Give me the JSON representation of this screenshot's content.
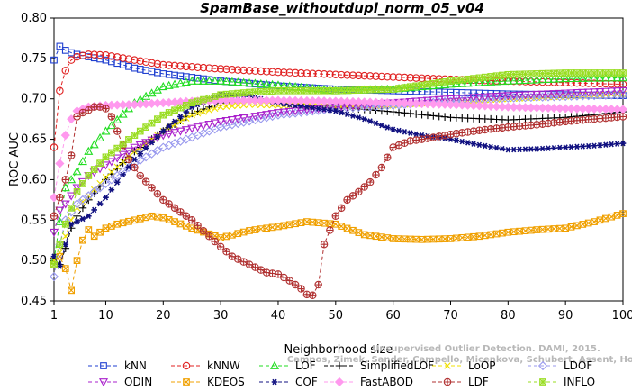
{
  "chart_data": {
    "type": "line",
    "title": "SpamBase_withoutdupl_norm_05_v04",
    "xlabel": "Neighborhood size",
    "ylabel": "ROC AUC",
    "xlim": [
      1,
      100
    ],
    "ylim": [
      0.45,
      0.8
    ],
    "xticks": [
      1,
      10,
      20,
      30,
      40,
      50,
      60,
      70,
      80,
      90,
      100
    ],
    "yticks": [
      0.45,
      0.5,
      0.55,
      0.6,
      0.65,
      0.7,
      0.75,
      0.8
    ],
    "ytick_labels": [
      "0.45",
      "0.50",
      "0.55",
      "0.60",
      "0.65",
      "0.70",
      "0.75",
      "0.80"
    ],
    "grid": false,
    "legend_position": "bottom",
    "watermark": [
      "Campos, Zimek, Sander, Campello, Micenkova, Schubert, Assent, Houle",
      "Unsupervised Outlier Detection. DAMI, 2015."
    ],
    "series": [
      {
        "name": "kNN",
        "color": "#1f3fd0",
        "marker": "square",
        "dash": "dash",
        "x": [
          1,
          2,
          3,
          4,
          5,
          7,
          10,
          15,
          20,
          30,
          40,
          50,
          60,
          70,
          80,
          90,
          100
        ],
        "y": [
          0.748,
          0.765,
          0.76,
          0.757,
          0.755,
          0.752,
          0.748,
          0.738,
          0.731,
          0.722,
          0.716,
          0.712,
          0.71,
          0.708,
          0.706,
          0.705,
          0.704
        ]
      },
      {
        "name": "kNNW",
        "color": "#e02020",
        "marker": "circle",
        "dash": "dash",
        "x": [
          1,
          2,
          3,
          4,
          5,
          7,
          10,
          15,
          20,
          30,
          40,
          50,
          60,
          70,
          80,
          90,
          100
        ],
        "y": [
          0.64,
          0.71,
          0.735,
          0.748,
          0.752,
          0.755,
          0.754,
          0.748,
          0.742,
          0.737,
          0.733,
          0.73,
          0.727,
          0.724,
          0.722,
          0.72,
          0.718
        ]
      },
      {
        "name": "LOF",
        "color": "#22dd22",
        "marker": "triangle",
        "dash": "dash",
        "x": [
          1,
          2,
          3,
          4,
          5,
          7,
          10,
          15,
          20,
          25,
          30,
          40,
          50,
          60,
          70,
          80,
          90,
          100
        ],
        "y": [
          0.5,
          0.548,
          0.59,
          0.6,
          0.61,
          0.635,
          0.66,
          0.695,
          0.715,
          0.722,
          0.722,
          0.717,
          0.71,
          0.712,
          0.718,
          0.722,
          0.725,
          0.726
        ]
      },
      {
        "name": "SimplifiedLOF",
        "color": "#000000",
        "marker": "plus",
        "dash": "dash",
        "x": [
          1,
          2,
          3,
          4,
          5,
          7,
          10,
          15,
          20,
          25,
          30,
          35,
          40,
          50,
          60,
          70,
          80,
          90,
          100
        ],
        "y": [
          0.503,
          0.495,
          0.515,
          0.54,
          0.555,
          0.575,
          0.6,
          0.635,
          0.66,
          0.682,
          0.695,
          0.697,
          0.695,
          0.69,
          0.684,
          0.677,
          0.674,
          0.677,
          0.684
        ]
      },
      {
        "name": "LoOP",
        "color": "#f0e000",
        "marker": "cross",
        "dash": "dash",
        "x": [
          1,
          2,
          3,
          4,
          5,
          7,
          10,
          15,
          20,
          25,
          30,
          35,
          40,
          50,
          60,
          70,
          80,
          90,
          100
        ],
        "y": [
          0.5,
          0.51,
          0.53,
          0.55,
          0.565,
          0.58,
          0.603,
          0.635,
          0.66,
          0.68,
          0.69,
          0.693,
          0.692,
          0.69,
          0.692,
          0.697,
          0.7,
          0.703,
          0.706
        ]
      },
      {
        "name": "LDOF",
        "color": "#9999ee",
        "marker": "diamond",
        "dash": "dash",
        "x": [
          1,
          2,
          3,
          4,
          5,
          7,
          10,
          15,
          20,
          30,
          40,
          50,
          60,
          70,
          80,
          90,
          100
        ],
        "y": [
          0.48,
          0.52,
          0.55,
          0.56,
          0.57,
          0.58,
          0.595,
          0.62,
          0.64,
          0.665,
          0.68,
          0.688,
          0.692,
          0.697,
          0.701,
          0.703,
          0.705
        ]
      },
      {
        "name": "ODIN",
        "color": "#aa22cc",
        "marker": "triangle-down",
        "dash": "dash",
        "x": [
          1,
          2,
          3,
          4,
          5,
          7,
          10,
          15,
          20,
          30,
          40,
          50,
          60,
          70,
          80,
          90,
          100
        ],
        "y": [
          0.535,
          0.562,
          0.57,
          0.58,
          0.59,
          0.605,
          0.618,
          0.64,
          0.655,
          0.672,
          0.683,
          0.69,
          0.695,
          0.7,
          0.704,
          0.707,
          0.71
        ]
      },
      {
        "name": "KDEOS",
        "color": "#f0a000",
        "marker": "boxx",
        "dash": "dash",
        "x": [
          1,
          2,
          3,
          4,
          5,
          6,
          7,
          8,
          9,
          10,
          12,
          15,
          18,
          20,
          22,
          25,
          30,
          35,
          40,
          45,
          50,
          55,
          60,
          65,
          70,
          75,
          80,
          85,
          90,
          95,
          100
        ],
        "y": [
          0.495,
          0.505,
          0.49,
          0.463,
          0.5,
          0.525,
          0.538,
          0.53,
          0.535,
          0.54,
          0.545,
          0.55,
          0.555,
          0.553,
          0.548,
          0.54,
          0.528,
          0.537,
          0.542,
          0.548,
          0.545,
          0.532,
          0.527,
          0.526,
          0.527,
          0.53,
          0.535,
          0.538,
          0.54,
          0.548,
          0.558
        ]
      },
      {
        "name": "COF",
        "color": "#101080",
        "marker": "asterisk",
        "dash": "dash",
        "x": [
          1,
          2,
          3,
          4,
          5,
          7,
          10,
          15,
          20,
          25,
          30,
          35,
          40,
          50,
          55,
          60,
          65,
          70,
          75,
          80,
          85,
          90,
          95,
          100
        ],
        "y": [
          0.505,
          0.493,
          0.52,
          0.545,
          0.548,
          0.555,
          0.578,
          0.625,
          0.66,
          0.69,
          0.705,
          0.703,
          0.695,
          0.685,
          0.675,
          0.662,
          0.655,
          0.65,
          0.643,
          0.637,
          0.638,
          0.64,
          0.642,
          0.645
        ]
      },
      {
        "name": "FastABOD",
        "color": "#ff99ee",
        "marker": "diamond-filled",
        "dash": "dash",
        "x": [
          1,
          2,
          3,
          4,
          5,
          7,
          10,
          15,
          20,
          25,
          30,
          35,
          40,
          50,
          60,
          70,
          80,
          90,
          100
        ],
        "y": [
          0.578,
          0.62,
          0.655,
          0.675,
          0.685,
          0.69,
          0.692,
          0.693,
          0.695,
          0.697,
          0.698,
          0.698,
          0.698,
          0.697,
          0.695,
          0.693,
          0.69,
          0.688,
          0.687
        ]
      },
      {
        "name": "LDF",
        "color": "#b03030",
        "marker": "circle-plus",
        "dash": "dash",
        "x": [
          1,
          2,
          3,
          4,
          5,
          6,
          7,
          8,
          9,
          10,
          11,
          12,
          14,
          16,
          18,
          20,
          22,
          25,
          28,
          30,
          32,
          35,
          38,
          40,
          42,
          44,
          45,
          46,
          47,
          48,
          50,
          52,
          54,
          56,
          58,
          60,
          63,
          66,
          70,
          75,
          80,
          85,
          90,
          95,
          100
        ],
        "y": [
          0.555,
          0.578,
          0.6,
          0.63,
          0.678,
          0.683,
          0.686,
          0.69,
          0.69,
          0.688,
          0.678,
          0.66,
          0.625,
          0.605,
          0.59,
          0.575,
          0.565,
          0.55,
          0.53,
          0.517,
          0.505,
          0.495,
          0.485,
          0.483,
          0.475,
          0.465,
          0.458,
          0.457,
          0.47,
          0.52,
          0.555,
          0.575,
          0.585,
          0.597,
          0.615,
          0.64,
          0.648,
          0.651,
          0.656,
          0.661,
          0.665,
          0.668,
          0.672,
          0.675,
          0.678
        ]
      },
      {
        "name": "INFLO",
        "color": "#99dd22",
        "marker": "star",
        "dash": "dash",
        "x": [
          1,
          2,
          3,
          4,
          5,
          7,
          10,
          15,
          20,
          25,
          30,
          35,
          40,
          50,
          60,
          70,
          80,
          90,
          100
        ],
        "y": [
          0.495,
          0.52,
          0.545,
          0.565,
          0.585,
          0.605,
          0.628,
          0.655,
          0.68,
          0.695,
          0.705,
          0.708,
          0.71,
          0.71,
          0.712,
          0.722,
          0.73,
          0.732,
          0.732
        ]
      }
    ]
  }
}
